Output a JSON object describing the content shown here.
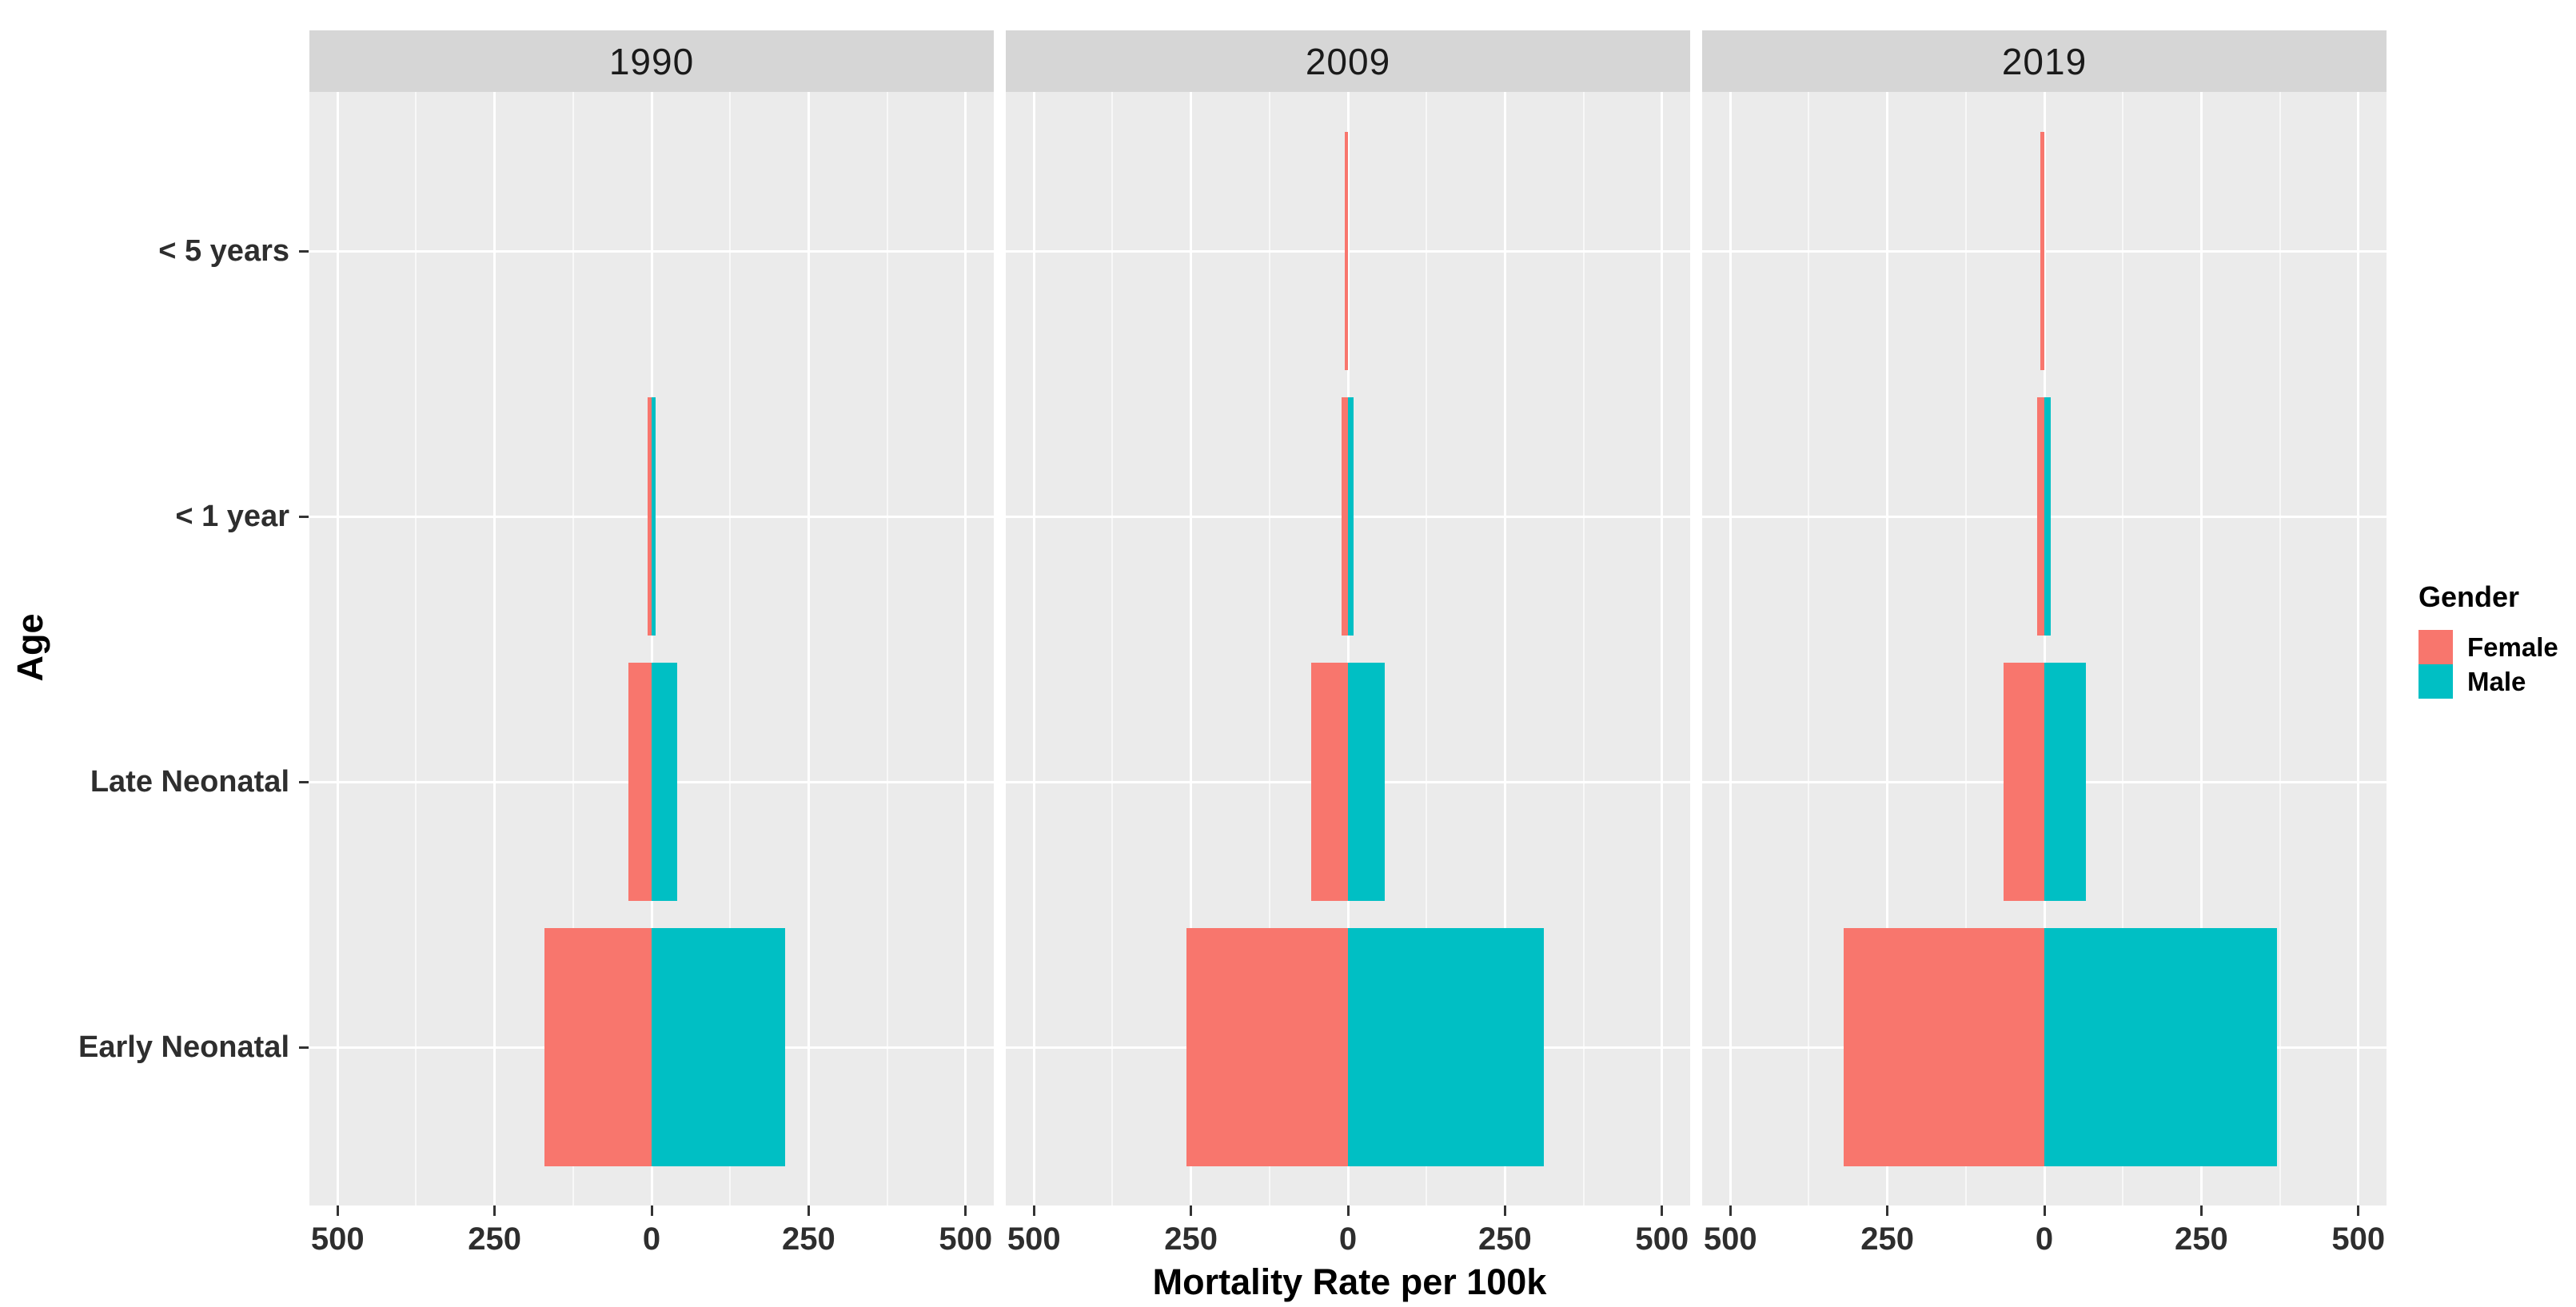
{
  "y_axis": {
    "title": "Age",
    "labels": [
      "< 5 years",
      "< 1 year",
      "Late Neonatal",
      "Early Neonatal"
    ]
  },
  "x_axis": {
    "title": "Mortality Rate per 100k",
    "tick_labels": [
      "500",
      "250",
      "0",
      "250",
      "500"
    ]
  },
  "legend": {
    "title": "Gender",
    "items": [
      {
        "label": "Female",
        "color": "#F8766D"
      },
      {
        "label": "Male",
        "color": "#00BFC4"
      }
    ]
  },
  "chart_data": {
    "type": "bar",
    "orientation": "horizontal-diverging-pyramid",
    "title": "",
    "xlabel": "Mortality Rate per 100k",
    "ylabel": "Age",
    "legend_title": "Gender",
    "legend_position": "right",
    "grid": "on",
    "categories_top_to_bottom": [
      "< 5 years",
      "< 1 year",
      "Late Neonatal",
      "Early Neonatal"
    ],
    "facet_variable": "Year",
    "facets": [
      {
        "label": "1990",
        "values": {
          "Female": [
            0,
            6,
            37,
            171
          ],
          "Male": [
            0,
            7,
            41,
            213
          ]
        }
      },
      {
        "label": "2009",
        "values": {
          "Female": [
            5,
            10,
            58,
            257
          ],
          "Male": [
            0,
            9,
            59,
            312
          ]
        }
      },
      {
        "label": "2019",
        "values": {
          "Female": [
            6,
            11,
            65,
            320
          ],
          "Male": [
            0,
            10,
            66,
            370
          ]
        }
      }
    ],
    "x_breaks": [
      -500,
      -250,
      0,
      250,
      500
    ],
    "x_minor_breaks": [
      -375,
      -125,
      125,
      375
    ],
    "x_tick_labels": [
      "500",
      "250",
      "0",
      "250",
      "500"
    ],
    "xlim": [
      -546,
      546
    ]
  }
}
